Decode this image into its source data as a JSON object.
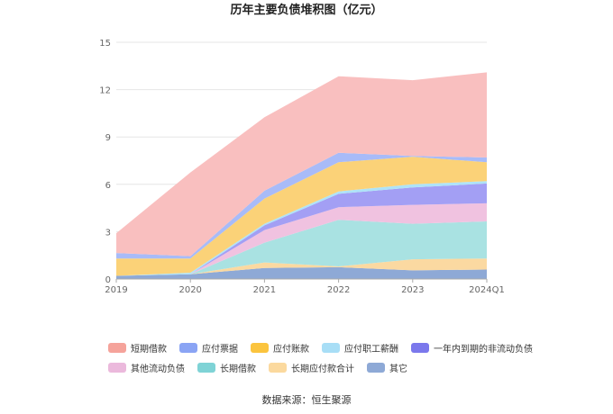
{
  "source_label": "数据来源：恒生聚源",
  "chart_data": {
    "type": "area",
    "stacked": true,
    "title": "历年主要负债堆积图（亿元）",
    "x": [
      "2019",
      "2020",
      "2021",
      "2022",
      "2023",
      "2024Q1"
    ],
    "ylim": [
      0,
      15
    ],
    "yticks": [
      0,
      3,
      6,
      9,
      12,
      15
    ],
    "grid": true,
    "legend_position": "bottom",
    "series": [
      {
        "name": "其它",
        "color": "#8ea9d6",
        "values": [
          0.2,
          0.3,
          0.7,
          0.75,
          0.55,
          0.6
        ]
      },
      {
        "name": "长期应付款合计",
        "color": "#fbd9a1",
        "values": [
          0.0,
          0.0,
          0.35,
          0.05,
          0.7,
          0.7
        ]
      },
      {
        "name": "长期借款",
        "color": "#a9e2e2",
        "values": [
          0.0,
          0.0,
          1.25,
          2.95,
          2.25,
          2.35
        ]
      },
      {
        "name": "其他流动负债",
        "color": "#f0c2e0",
        "values": [
          0.0,
          0.0,
          0.8,
          0.8,
          1.2,
          1.15
        ]
      },
      {
        "name": "一年内到期的非流动负债",
        "color": "#a39ff4",
        "values": [
          0.0,
          0.0,
          0.3,
          0.85,
          1.1,
          1.25
        ]
      },
      {
        "name": "应付职工薪酬",
        "color": "#aee3f8",
        "values": [
          0.0,
          0.1,
          0.1,
          0.15,
          0.2,
          0.15
        ]
      },
      {
        "name": "应付账款",
        "color": "#fbd278",
        "values": [
          1.1,
          0.9,
          1.6,
          1.85,
          1.75,
          1.2
        ]
      },
      {
        "name": "应付票据",
        "color": "#a8bbf8",
        "values": [
          0.35,
          0.15,
          0.5,
          0.6,
          0.05,
          0.3
        ]
      },
      {
        "name": "短期借款",
        "color": "#f9bfbf",
        "values": [
          1.25,
          5.3,
          4.65,
          4.85,
          4.8,
          5.4
        ]
      }
    ],
    "legend": [
      {
        "name": "短期借款",
        "color": "#f5a39b"
      },
      {
        "name": "应付票据",
        "color": "#8aa4f4"
      },
      {
        "name": "应付账款",
        "color": "#fbc43e"
      },
      {
        "name": "应付职工薪酬",
        "color": "#a8def6"
      },
      {
        "name": "一年内到期的非流动负债",
        "color": "#7b78ec"
      },
      {
        "name": "其他流动负债",
        "color": "#ebb9dc"
      },
      {
        "name": "长期借款",
        "color": "#7fd3d6"
      },
      {
        "name": "长期应付款合计",
        "color": "#fbd99e"
      },
      {
        "name": "其它",
        "color": "#8ea9d6"
      }
    ]
  }
}
